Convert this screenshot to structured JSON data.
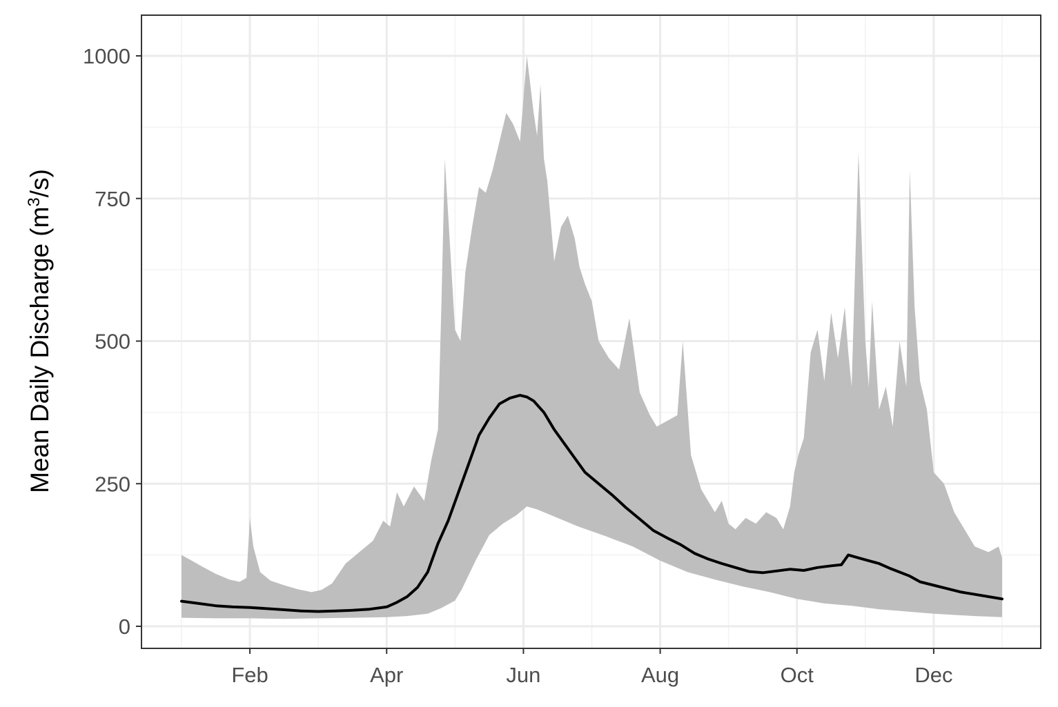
{
  "chart_data": {
    "type": "area",
    "title": "",
    "xlabel": "",
    "ylabel_main": "Mean Daily Discharge (m",
    "ylabel_sup": "3",
    "ylabel_tail": "/s)",
    "ylim": [
      0,
      1000
    ],
    "xlim_months": [
      1,
      13
    ],
    "yticks": [
      {
        "value": 0,
        "label": "0"
      },
      {
        "value": 250,
        "label": "250"
      },
      {
        "value": 500,
        "label": "500"
      },
      {
        "value": 750,
        "label": "750"
      },
      {
        "value": 1000,
        "label": "1000"
      }
    ],
    "xticks": [
      {
        "value": 2,
        "label": "Feb"
      },
      {
        "value": 4,
        "label": "Apr"
      },
      {
        "value": 6,
        "label": "Jun"
      },
      {
        "value": 8,
        "label": "Aug"
      },
      {
        "value": 10,
        "label": "Oct"
      },
      {
        "value": 12,
        "label": "Dec"
      }
    ],
    "grid": true,
    "legend": "none",
    "colors": {
      "ribbon": "#bebebe",
      "line": "#000000",
      "panel_border": "#333333",
      "grid_major": "#ebebeb",
      "grid_minor": "#f2f2f2"
    },
    "series": [
      {
        "role": "mean",
        "x": [
          1.0,
          1.25,
          1.5,
          1.75,
          2.0,
          2.25,
          2.5,
          2.75,
          3.0,
          3.25,
          3.5,
          3.75,
          4.0,
          4.15,
          4.3,
          4.45,
          4.6,
          4.75,
          4.9,
          5.05,
          5.2,
          5.35,
          5.5,
          5.65,
          5.8,
          5.95,
          6.05,
          6.15,
          6.3,
          6.45,
          6.6,
          6.75,
          6.9,
          7.1,
          7.3,
          7.5,
          7.7,
          7.9,
          8.1,
          8.3,
          8.5,
          8.7,
          8.9,
          9.1,
          9.3,
          9.5,
          9.7,
          9.9,
          10.1,
          10.3,
          10.5,
          10.65,
          10.75,
          10.9,
          11.05,
          11.2,
          11.35,
          11.5,
          11.65,
          11.8,
          12.0,
          12.2,
          12.4,
          12.6,
          12.8,
          13.0
        ],
        "y": [
          44,
          40,
          36,
          34,
          33,
          31,
          29,
          27,
          26,
          27,
          28,
          30,
          34,
          42,
          52,
          68,
          95,
          145,
          185,
          235,
          285,
          335,
          365,
          390,
          400,
          405,
          402,
          395,
          375,
          345,
          320,
          295,
          270,
          250,
          230,
          208,
          188,
          168,
          155,
          143,
          128,
          118,
          110,
          103,
          96,
          94,
          97,
          100,
          98,
          103,
          106,
          108,
          125,
          120,
          115,
          110,
          102,
          95,
          88,
          78,
          72,
          66,
          60,
          56,
          52,
          48
        ]
      },
      {
        "role": "min",
        "x": [
          1.0,
          1.5,
          2.0,
          2.5,
          3.0,
          3.5,
          4.0,
          4.3,
          4.6,
          4.8,
          5.0,
          5.1,
          5.3,
          5.5,
          5.7,
          5.9,
          6.05,
          6.2,
          6.5,
          6.8,
          7.2,
          7.6,
          8.0,
          8.4,
          8.8,
          9.2,
          9.6,
          10.0,
          10.4,
          10.8,
          11.2,
          11.6,
          12.0,
          12.3,
          12.6,
          13.0
        ],
        "y": [
          15,
          14,
          14,
          13,
          14,
          15,
          16,
          18,
          22,
          32,
          45,
          65,
          115,
          160,
          180,
          195,
          210,
          205,
          190,
          175,
          158,
          140,
          115,
          95,
          82,
          70,
          60,
          48,
          40,
          36,
          30,
          26,
          22,
          20,
          18,
          16
        ]
      },
      {
        "role": "max",
        "x": [
          1.0,
          1.15,
          1.3,
          1.5,
          1.7,
          1.85,
          1.95,
          2.0,
          2.05,
          2.15,
          2.3,
          2.5,
          2.7,
          2.9,
          3.05,
          3.2,
          3.4,
          3.6,
          3.8,
          3.95,
          4.05,
          4.15,
          4.25,
          4.4,
          4.55,
          4.65,
          4.75,
          4.8,
          4.85,
          4.92,
          5.0,
          5.08,
          5.15,
          5.25,
          5.35,
          5.45,
          5.55,
          5.65,
          5.75,
          5.85,
          5.95,
          6.05,
          6.15,
          6.2,
          6.25,
          6.3,
          6.35,
          6.45,
          6.55,
          6.65,
          6.75,
          6.82,
          6.9,
          7.0,
          7.1,
          7.25,
          7.4,
          7.55,
          7.7,
          7.85,
          7.95,
          8.1,
          8.25,
          8.33,
          8.45,
          8.6,
          8.8,
          8.9,
          9.0,
          9.1,
          9.25,
          9.4,
          9.55,
          9.7,
          9.8,
          9.9,
          9.96,
          10.02,
          10.1,
          10.2,
          10.3,
          10.4,
          10.5,
          10.6,
          10.7,
          10.75,
          10.8,
          10.9,
          11.0,
          11.05,
          11.1,
          11.2,
          11.3,
          11.4,
          11.5,
          11.6,
          11.65,
          11.72,
          11.8,
          11.9,
          12.0,
          12.15,
          12.3,
          12.45,
          12.6,
          12.8,
          12.95,
          13.0
        ],
        "y": [
          125,
          115,
          105,
          92,
          82,
          78,
          85,
          190,
          140,
          95,
          80,
          72,
          65,
          60,
          64,
          75,
          110,
          130,
          150,
          185,
          175,
          235,
          210,
          245,
          220,
          290,
          345,
          560,
          820,
          680,
          520,
          500,
          620,
          700,
          770,
          760,
          800,
          850,
          900,
          880,
          850,
          1000,
          900,
          860,
          950,
          820,
          780,
          640,
          700,
          720,
          680,
          630,
          600,
          570,
          500,
          470,
          450,
          540,
          410,
          370,
          350,
          360,
          370,
          500,
          300,
          240,
          200,
          220,
          180,
          170,
          190,
          180,
          200,
          190,
          170,
          210,
          270,
          300,
          330,
          480,
          520,
          430,
          550,
          470,
          560,
          480,
          420,
          830,
          500,
          420,
          570,
          380,
          420,
          350,
          500,
          420,
          800,
          560,
          430,
          380,
          270,
          250,
          200,
          170,
          140,
          130,
          140,
          120
        ]
      }
    ]
  }
}
